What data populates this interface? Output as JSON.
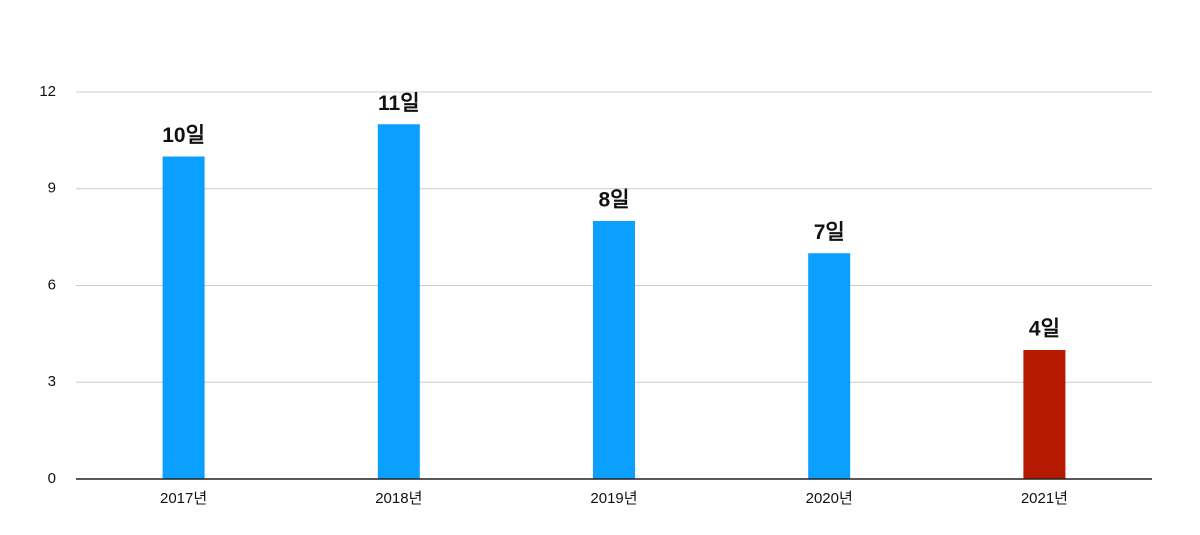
{
  "chart_data": {
    "type": "bar",
    "categories": [
      "2017년",
      "2018년",
      "2019년",
      "2020년",
      "2021년"
    ],
    "values": [
      10,
      11,
      8,
      7,
      4
    ],
    "value_labels": [
      "10일",
      "11일",
      "8일",
      "7일",
      "4일"
    ],
    "colors": [
      "#0ba0ff",
      "#0ba0ff",
      "#0ba0ff",
      "#0ba0ff",
      "#b51a00"
    ],
    "ylim": [
      0,
      12
    ],
    "yticks": [
      0,
      3,
      6,
      9,
      12
    ],
    "grid": true
  }
}
